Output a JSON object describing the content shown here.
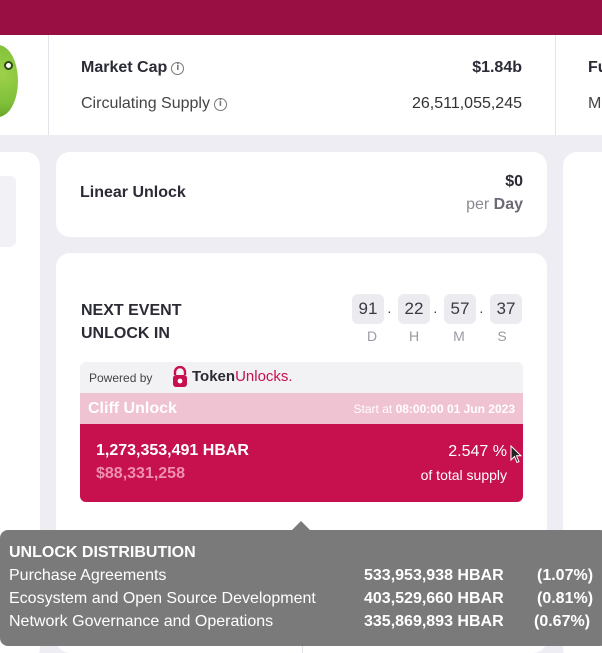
{
  "stats": {
    "market_cap_label": "Market Cap",
    "market_cap_value": "$1.84b",
    "circ_supply_label": "Circulating Supply",
    "circ_supply_value": "26,511,055,245",
    "right_label_1": "Fu",
    "right_label_2": "M"
  },
  "linear": {
    "title": "Linear Unlock",
    "amount": "$0",
    "per": "per",
    "period": "Day"
  },
  "next_event": {
    "title_line1": "NEXT EVENT",
    "title_line2": "UNLOCK IN",
    "countdown": [
      {
        "value": "91",
        "unit": "D"
      },
      {
        "value": "22",
        "unit": "H"
      },
      {
        "value": "57",
        "unit": "M"
      },
      {
        "value": "37",
        "unit": "S"
      }
    ],
    "separator": "·"
  },
  "powered": {
    "label": "Powered by",
    "brand_token": "Token",
    "brand_unlocks": "Unlocks."
  },
  "cliff": {
    "title": "Cliff Unlock",
    "start_prefix": "Start at",
    "start_time": "08:00:00 01 Jun 2023",
    "amount_tokens": "1,273,353,491 HBAR",
    "amount_usd": "$88,331,258",
    "percent": "2.547 %",
    "percent_caption": "of total supply"
  },
  "tooltip": {
    "title": "UNLOCK DISTRIBUTION",
    "rows": [
      {
        "name": "Purchase Agreements",
        "amount": "533,953,938 HBAR",
        "pct": "(1.07%)"
      },
      {
        "name": "Ecosystem and Open Source Development",
        "amount": "403,529,660 HBAR",
        "pct": "(0.81%)"
      },
      {
        "name": "Network Governance and Operations",
        "amount": "335,869,893 HBAR",
        "pct": "(0.67%)"
      }
    ]
  },
  "colors": {
    "brand": "#9a0f43",
    "cliff_accent": "#c7114e",
    "cliff_header": "#f0c3d3",
    "tooltip_bg": "#7a7a7a"
  }
}
